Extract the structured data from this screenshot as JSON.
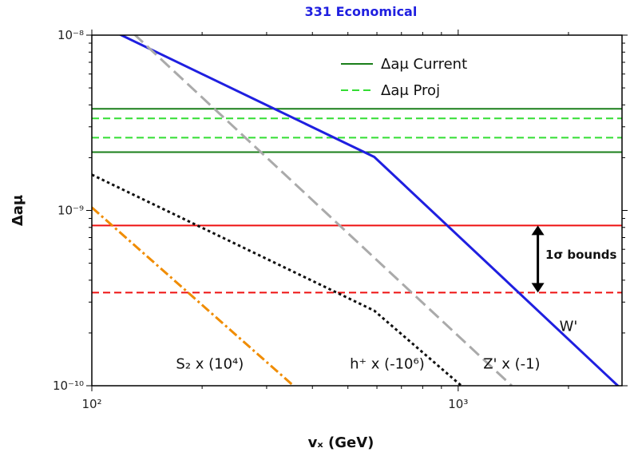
{
  "chart_data": {
    "type": "line",
    "title": "331 Economical",
    "title_color": "#1f1fe0",
    "xlabel": "vₓ (GeV)",
    "ylabel": "Δaμ",
    "xscale": "log",
    "yscale": "log",
    "xlim": [
      100,
      2800
    ],
    "ylim": [
      1e-10,
      1e-08
    ],
    "x_ticks": [
      {
        "value": 100,
        "label": "10²"
      },
      {
        "value": 1000,
        "label": "10³"
      }
    ],
    "y_ticks": [
      {
        "value": 1e-10,
        "label": "10⁻¹⁰"
      },
      {
        "value": 1e-09,
        "label": "10⁻⁹"
      },
      {
        "value": 1e-08,
        "label": "10⁻⁸"
      }
    ],
    "grid": false,
    "legend": {
      "placement": "top-center",
      "entries": [
        {
          "label": "Δaμ Current",
          "color": "#1a7f1a",
          "style": "solid"
        },
        {
          "label": "Δaμ Proj",
          "color": "#33dd33",
          "style": "dashed"
        }
      ]
    },
    "hlines": [
      {
        "y": 3.8e-09,
        "color": "#1a7f1a",
        "style": "solid"
      },
      {
        "y": 2.15e-09,
        "color": "#1a7f1a",
        "style": "solid"
      },
      {
        "y": 3.35e-09,
        "color": "#33dd33",
        "style": "dashed"
      },
      {
        "y": 2.6e-09,
        "color": "#33dd33",
        "style": "dashed"
      },
      {
        "y": 8.2e-10,
        "color": "#ee1111",
        "style": "solid"
      },
      {
        "y": 3.4e-10,
        "color": "#ee1111",
        "style": "dashed"
      }
    ],
    "series": [
      {
        "label": "W'",
        "color": "#1f1fe0",
        "style": "solid",
        "x": [
          118,
          590,
          2800
        ],
        "y": [
          1.02e-08,
          2.02e-09,
          9.5e-11
        ]
      },
      {
        "label": "Z' x (-1)",
        "color": "#aaaaaa",
        "style": "dashed",
        "x": [
          130,
          1400
        ],
        "y": [
          1.02e-08,
          1e-10
        ]
      },
      {
        "label": "h⁺ x (-10⁶)",
        "color": "#111111",
        "style": "dotted",
        "x": [
          100,
          590,
          1020
        ],
        "y": [
          1.6e-09,
          2.68e-10,
          1e-10
        ]
      },
      {
        "label": "S₂ x (10⁴)",
        "color": "#f08c00",
        "style": "dashdot",
        "x": [
          100,
          355
        ],
        "y": [
          1.04e-09,
          1e-10
        ]
      }
    ],
    "series_label_positions": [
      {
        "text": "W'",
        "x": 2000,
        "y": 2.05e-10
      },
      {
        "text": "Z' x (-1)",
        "x": 1400,
        "y": 1.25e-10
      },
      {
        "text": "h⁺ x (-10⁶)",
        "x": 640,
        "y": 1.25e-10
      },
      {
        "text": "S₂ x (10⁴)",
        "x": 210,
        "y": 1.25e-10
      }
    ],
    "annotation": {
      "text": "1σ bounds",
      "arrow_x": 1650,
      "y_from": 8.2e-10,
      "y_to": 3.4e-10,
      "text_x": 1730,
      "text_y": 5.3e-10
    }
  }
}
